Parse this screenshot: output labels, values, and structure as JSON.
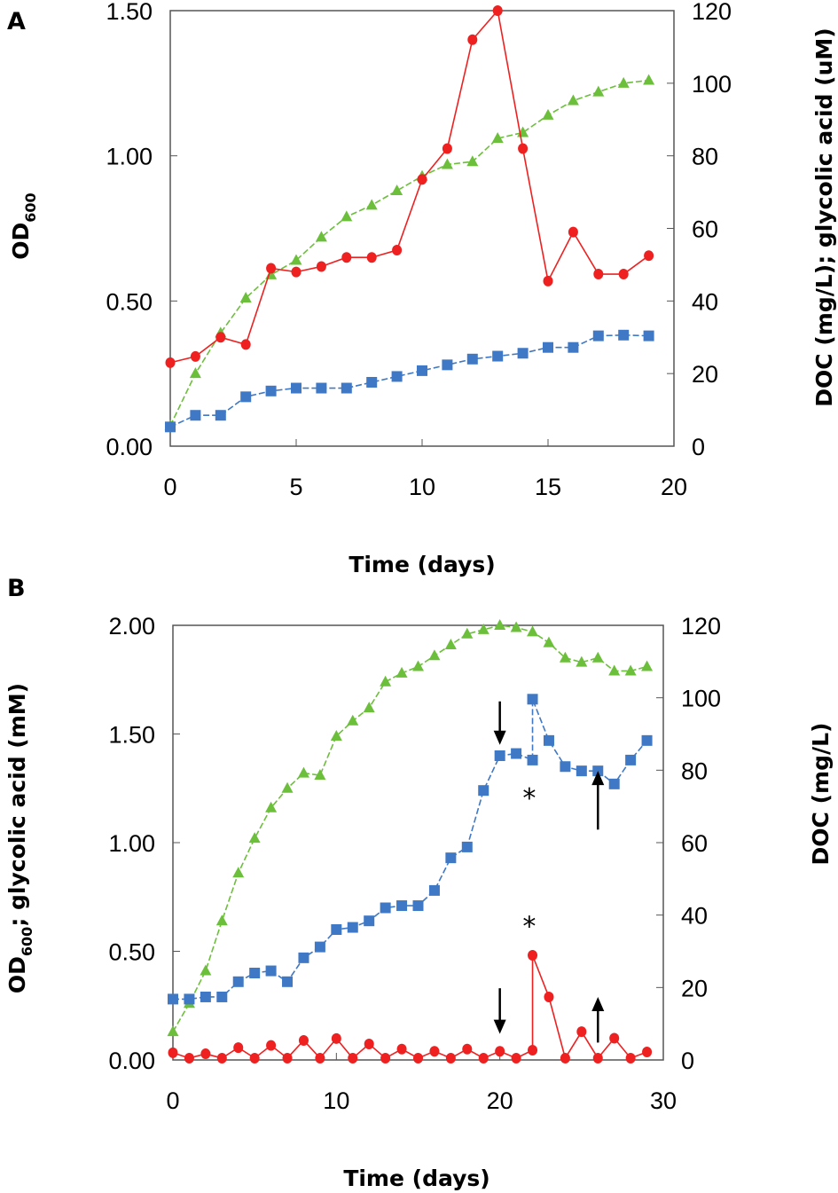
{
  "chart_data": [
    {
      "panel_label": "A",
      "type": "line",
      "xlabel": "Time (days)",
      "ylabel_left": "OD",
      "ylabel_left_sub": "600",
      "ylabel_right": "DOC (mg/L); glycolic acid (uM)",
      "xlim": [
        0,
        20
      ],
      "ylim_left": [
        0,
        1.5
      ],
      "ylim_right": [
        0,
        120
      ],
      "xticks": [
        "0",
        "5",
        "10",
        "15",
        "20"
      ],
      "yticks_left": [
        "0.00",
        "0.50",
        "1.00",
        "1.50"
      ],
      "yticks_right": [
        "0",
        "20",
        "40",
        "60",
        "80",
        "100",
        "120"
      ],
      "grid": false,
      "x": [
        0,
        1,
        2,
        3,
        4,
        5,
        6,
        7,
        8,
        9,
        10,
        11,
        12,
        13,
        14,
        15,
        16,
        17,
        18,
        19
      ],
      "series": [
        {
          "marker": "triangle",
          "color": "#6cbf3b",
          "axis": "left",
          "line": "dashed",
          "values": [
            0.07,
            0.25,
            0.39,
            0.51,
            0.59,
            0.64,
            0.72,
            0.79,
            0.83,
            0.88,
            0.93,
            0.97,
            0.98,
            1.06,
            1.08,
            1.14,
            1.19,
            1.22,
            1.25,
            1.26
          ]
        },
        {
          "marker": "square",
          "color": "#3f78c4",
          "axis": "right",
          "line": "dashed",
          "values": [
            5.3,
            8.5,
            8.5,
            13.6,
            15.2,
            16,
            16,
            16,
            17.6,
            19.2,
            20.8,
            22.4,
            24,
            24.8,
            25.6,
            27.2,
            27.2,
            30.4,
            30.6,
            30.4
          ]
        },
        {
          "marker": "circle",
          "color": "#ee2020",
          "axis": "right",
          "line": "solid",
          "values": [
            23,
            24.7,
            30,
            28,
            49,
            48,
            49.5,
            52,
            52,
            54,
            73.5,
            82,
            112,
            120,
            82,
            45.5,
            59,
            47.4,
            47.4,
            52.5
          ]
        }
      ]
    },
    {
      "panel_label": "B",
      "type": "line",
      "xlabel": "Time (days)",
      "ylabel_left": "OD",
      "ylabel_left_sub": "600",
      "ylabel_left_rest": "; glycolic acid (mM)",
      "ylabel_right": "DOC (mg/L)",
      "xlim": [
        0,
        30
      ],
      "ylim_left": [
        0,
        2.0
      ],
      "ylim_right": [
        0,
        120
      ],
      "xticks": [
        "0",
        "10",
        "20",
        "30"
      ],
      "yticks_left": [
        "0.00",
        "0.50",
        "1.00",
        "1.50",
        "2.00"
      ],
      "yticks_right": [
        "0",
        "20",
        "40",
        "60",
        "80",
        "100",
        "120"
      ],
      "grid": false,
      "series": [
        {
          "marker": "triangle",
          "color": "#6cbf3b",
          "axis": "left",
          "line": "dashed",
          "x": [
            0,
            1,
            2,
            3,
            4,
            5,
            6,
            7,
            8,
            9,
            10,
            11,
            12,
            13,
            14,
            15,
            16,
            17,
            18,
            19,
            20,
            21,
            22,
            23,
            24,
            25,
            26,
            27,
            28,
            29
          ],
          "values": [
            0.13,
            0.26,
            0.41,
            0.64,
            0.86,
            1.02,
            1.16,
            1.25,
            1.32,
            1.31,
            1.49,
            1.56,
            1.62,
            1.74,
            1.78,
            1.81,
            1.86,
            1.91,
            1.96,
            1.98,
            2.0,
            1.99,
            1.97,
            1.92,
            1.85,
            1.83,
            1.85,
            1.79,
            1.79,
            1.81
          ]
        },
        {
          "marker": "square",
          "color": "#3f78c4",
          "axis": "left",
          "line": "dashed",
          "x": [
            0,
            1,
            2,
            3,
            4,
            5,
            6,
            7,
            8,
            9,
            10,
            11,
            12,
            13,
            14,
            15,
            16,
            17,
            18,
            19,
            20,
            21,
            22,
            22,
            23,
            24,
            25,
            26,
            27,
            28,
            29
          ],
          "values": [
            0.28,
            0.28,
            0.29,
            0.29,
            0.36,
            0.4,
            0.41,
            0.36,
            0.47,
            0.52,
            0.6,
            0.61,
            0.64,
            0.7,
            0.71,
            0.71,
            0.78,
            0.93,
            0.98,
            1.24,
            1.4,
            1.41,
            1.38,
            1.66,
            1.47,
            1.35,
            1.33,
            1.33,
            1.27,
            1.38,
            1.47
          ]
        },
        {
          "marker": "circle",
          "color": "#ee2020",
          "axis": "right",
          "line": "solid",
          "x": [
            0,
            1,
            2,
            3,
            4,
            5,
            6,
            7,
            8,
            9,
            10,
            11,
            12,
            13,
            14,
            15,
            16,
            17,
            18,
            19,
            20,
            21,
            22,
            22,
            23,
            24,
            25,
            26,
            27,
            28,
            29
          ],
          "values": [
            2,
            0.5,
            1.7,
            0.5,
            3.4,
            0.5,
            4,
            0.5,
            5.4,
            0.5,
            5.9,
            0.5,
            4.4,
            0.5,
            3,
            0.5,
            2.4,
            0.5,
            3,
            0.5,
            2.4,
            0.5,
            2.7,
            28.9,
            17.4,
            0.5,
            7.8,
            0.5,
            6,
            0.5,
            2.2
          ]
        }
      ],
      "annotations": [
        {
          "type": "arrow-down",
          "x": 20,
          "y_from": 1.65,
          "y_to": 1.45
        },
        {
          "type": "arrow-down",
          "x": 20,
          "y_from": 0.33,
          "y_to": 0.12
        },
        {
          "type": "arrow-up",
          "x": 26,
          "y_from": 1.06,
          "y_to": 1.33
        },
        {
          "type": "arrow-up",
          "x": 26,
          "y_from": 0.08,
          "y_to": 0.29
        },
        {
          "type": "text",
          "text": "*",
          "x": 21.8,
          "y": 1.22
        },
        {
          "type": "text",
          "text": "*",
          "x": 21.8,
          "y": 0.63
        }
      ]
    }
  ]
}
